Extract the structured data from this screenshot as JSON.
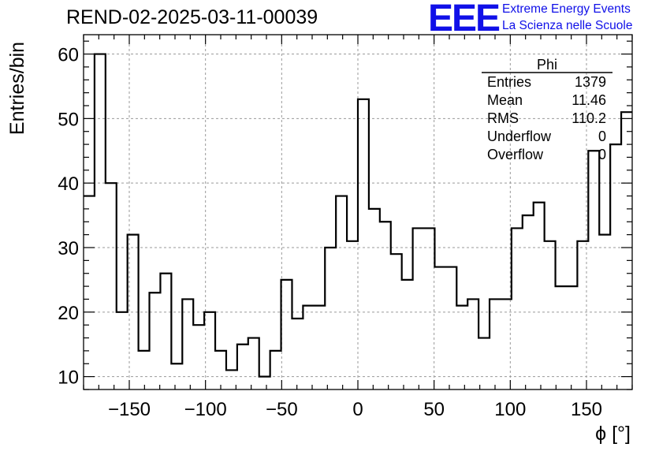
{
  "header": {
    "title": "REND-02-2025-03-11-00039",
    "logo": "EEE",
    "logo_line1": "Extreme Energy Events",
    "logo_line2": "La Scienza nelle Scuole"
  },
  "stats": {
    "name": "Phi",
    "rows": [
      {
        "label": "Entries",
        "value": "1379"
      },
      {
        "label": "Mean",
        "value": "11.46"
      },
      {
        "label": "RMS",
        "value": "110.2"
      },
      {
        "label": "Underflow",
        "value": "0"
      },
      {
        "label": "Overflow",
        "value": "0"
      }
    ]
  },
  "chart_data": {
    "type": "histogram",
    "title": "REND-02-2025-03-11-00039",
    "xlabel": "ϕ [°]",
    "ylabel": "Entries/bin",
    "xlim": [
      -180,
      180
    ],
    "ylim": [
      8,
      63
    ],
    "bin_width": 7.2,
    "x_ticks": [
      -150,
      -100,
      -50,
      0,
      50,
      100,
      150
    ],
    "y_ticks": [
      10,
      20,
      30,
      40,
      50,
      60
    ],
    "grid": true,
    "values": [
      38,
      60,
      40,
      20,
      32,
      14,
      23,
      26,
      12,
      22,
      18,
      20,
      14,
      11,
      15,
      16,
      10,
      14,
      25,
      19,
      21,
      21,
      30,
      38,
      31,
      53,
      36,
      34,
      29,
      25,
      33,
      33,
      27,
      27,
      21,
      22,
      16,
      22,
      22,
      33,
      35,
      37,
      31,
      24,
      24,
      31,
      45,
      32,
      46,
      51
    ]
  }
}
